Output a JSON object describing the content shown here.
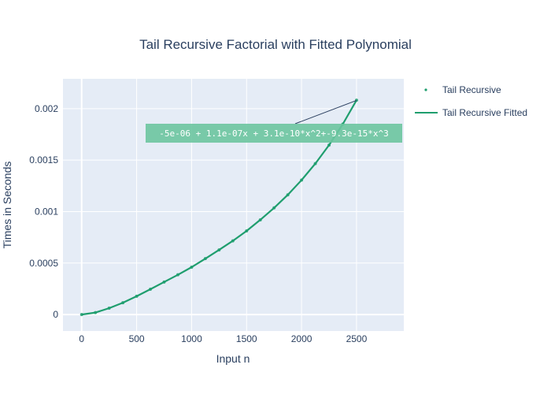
{
  "chart_data": {
    "type": "scatter",
    "title": "Tail Recursive Factorial with Fitted Polynomial",
    "xlabel": "Input n",
    "ylabel": "Times in Seconds",
    "xlim": [
      -170,
      2930
    ],
    "ylim": [
      -0.00016,
      0.00229
    ],
    "x_ticks": [
      0,
      500,
      1000,
      1500,
      2000,
      2500
    ],
    "x_tick_labels": [
      "0",
      "500",
      "1000",
      "1500",
      "2000",
      "2500"
    ],
    "y_ticks": [
      0,
      0.0005,
      0.001,
      0.0015,
      0.002
    ],
    "y_tick_labels": [
      "0",
      "0.0005",
      "0.001",
      "0.0015",
      "0.002"
    ],
    "grid": true,
    "legend_position": "top-right",
    "colors": {
      "series": "#1f9e6e",
      "plot_bg": "#e5ecf6",
      "grid": "#ffffff",
      "annotation_bg": "#6cc5a0",
      "text": "#2a3f5f"
    },
    "series": [
      {
        "name": "Tail Recursive",
        "mode": "markers",
        "x": [
          0,
          125,
          250,
          375,
          500,
          625,
          750,
          875,
          1000,
          1125,
          1250,
          1375,
          1500,
          1625,
          1750,
          1875,
          2000,
          2125,
          2250,
          2375,
          2500
        ],
        "y": [
          0.0,
          1.9e-05,
          6.2e-05,
          0.000115,
          0.000178,
          0.000246,
          0.000316,
          0.000386,
          0.00046,
          0.000543,
          0.000628,
          0.000716,
          0.000812,
          0.00092,
          0.001036,
          0.001163,
          0.001306,
          0.001466,
          0.001646,
          0.00185,
          0.002082
        ]
      },
      {
        "name": "Tail Recursive Fitted",
        "mode": "lines",
        "fit_coefficients": [
          -5e-06,
          1.1e-07,
          3.1e-10,
          -9.3e-15
        ],
        "x_range": [
          0,
          2500
        ]
      }
    ],
    "annotations": [
      {
        "text": "-5e-06 + 1.1e-07x + 3.1e-10*x^2+-9.3e-15*x^3",
        "arrow_to": {
          "x": 2500,
          "y": 0.00208
        }
      }
    ]
  }
}
